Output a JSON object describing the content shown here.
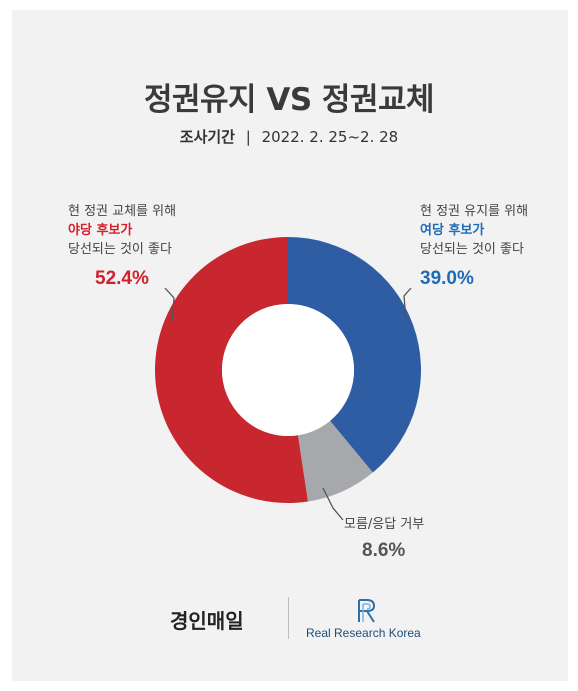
{
  "header": {
    "title": "정권유지 VS 정권교체",
    "subtitle_label": "조사기간",
    "subtitle_sep": "|",
    "subtitle_period": "2022. 2. 25~2. 28"
  },
  "labels": {
    "red": {
      "line1": "현 정권 교체를 위해",
      "line2": "야당 후보가",
      "line3": "당선되는 것이 좋다",
      "percent": "52.4%"
    },
    "blue": {
      "line1": "현 정권 유지를 위해",
      "line2": "여당 후보가",
      "line3": "당선되는 것이 좋다",
      "percent": "39.0%"
    },
    "gray": {
      "line1": "모름/응답 거부",
      "percent": "8.6%"
    }
  },
  "footer": {
    "brand_left": "경인매일",
    "brand_right": "Real Research Korea",
    "logo_icon": "rr-logo-icon"
  },
  "colors": {
    "red": "#c8272f",
    "blue": "#2f5da3",
    "gray": "#a6a8ab",
    "red_text": "#d4202c",
    "blue_text": "#1e6bb8",
    "gray_text": "#555555"
  },
  "chart_data": {
    "type": "pie",
    "donut": true,
    "title": "정권유지 VS 정권교체",
    "slices": [
      {
        "name": "현 정권 유지를 위해 여당 후보가 당선되는 것이 좋다",
        "value": 39.0,
        "color": "#2f5da3"
      },
      {
        "name": "모름/응답 거부",
        "value": 8.6,
        "color": "#a6a8ab"
      },
      {
        "name": "현 정권 교체를 위해 야당 후보가 당선되는 것이 좋다",
        "value": 52.4,
        "color": "#c8272f"
      }
    ]
  }
}
